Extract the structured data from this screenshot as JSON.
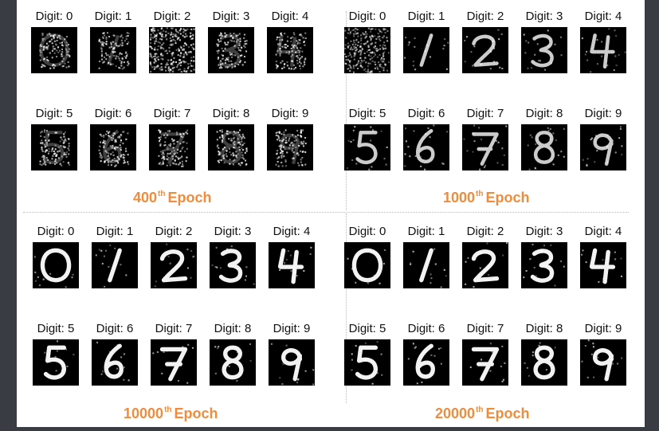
{
  "panels": [
    {
      "epoch_number": "400",
      "epoch_suffix": "th",
      "epoch_word": "Epoch",
      "quality": "noisy",
      "labels": [
        "Digit: 0",
        "Digit: 1",
        "Digit: 2",
        "Digit: 3",
        "Digit: 4",
        "Digit: 5",
        "Digit: 6",
        "Digit: 7",
        "Digit: 8",
        "Digit: 9"
      ]
    },
    {
      "epoch_number": "1000",
      "epoch_suffix": "th",
      "epoch_word": "Epoch",
      "quality": "faint",
      "labels": [
        "Digit: 0",
        "Digit: 1",
        "Digit: 2",
        "Digit: 3",
        "Digit: 4",
        "Digit: 5",
        "Digit: 6",
        "Digit: 7",
        "Digit: 8",
        "Digit: 9"
      ]
    },
    {
      "epoch_number": "10000",
      "epoch_suffix": "th",
      "epoch_word": "Epoch",
      "quality": "clear",
      "labels": [
        "Digit: 0",
        "Digit: 1",
        "Digit: 2",
        "Digit: 3",
        "Digit: 4",
        "Digit: 5",
        "Digit: 6",
        "Digit: 7",
        "Digit: 8",
        "Digit: 9"
      ]
    },
    {
      "epoch_number": "20000",
      "epoch_suffix": "th",
      "epoch_word": "Epoch",
      "quality": "clear",
      "labels": [
        "Digit: 0",
        "Digit: 1",
        "Digit: 2",
        "Digit: 3",
        "Digit: 4",
        "Digit: 5",
        "Digit: 6",
        "Digit: 7",
        "Digit: 8",
        "Digit: 9"
      ]
    }
  ],
  "colors": {
    "background": "#3a3c44",
    "canvas": "#ffffff",
    "caption": "#f08c3c",
    "digit_bg": "#000000",
    "digit_fg": "#ffffff"
  }
}
